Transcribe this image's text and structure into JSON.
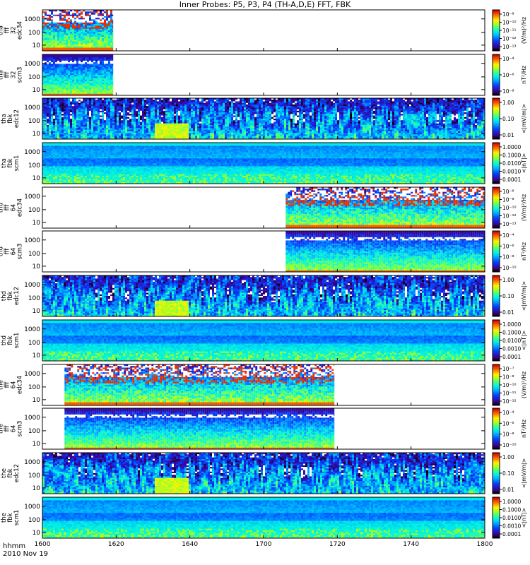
{
  "title": "Inner Probes: P5, P3, P4 (TH-A,D,E) FFT, FBK",
  "footer": {
    "line1": "hhmm",
    "line2": "2010 Nov 19"
  },
  "chart_data": {
    "type": "heatmap",
    "x_axis": {
      "ticks": [
        "1600",
        "1620",
        "1640",
        "1700",
        "1720",
        "1740",
        "1800"
      ],
      "range": [
        "16:00",
        "18:00"
      ]
    },
    "colorbar_colors": [
      "#7f00ff",
      "#1e3cff",
      "#00b4ff",
      "#00ffb4",
      "#3cff00",
      "#c8ff00",
      "#ffd200",
      "#ff6400",
      "#dc0000"
    ],
    "panels": [
      {
        "ylabel": [
          "tha",
          "fff",
          "32",
          "edc34"
        ],
        "yticks": [
          "1000",
          "100",
          "10"
        ],
        "cbar_ticks": [
          "10⁻⁸",
          "10⁻¹⁰",
          "10⁻¹¹",
          "10⁻¹²",
          "10⁻¹³"
        ],
        "cbar_label": "(V/m)²/Hz",
        "coverage": [
          [
            0.0,
            0.16
          ]
        ],
        "style": "fff"
      },
      {
        "ylabel": [
          "tha",
          "fff",
          "32",
          "scm3"
        ],
        "yticks": [
          "1000",
          "100",
          "10"
        ],
        "cbar_ticks": [
          "10⁻⁴",
          "10⁻⁶",
          "10⁻⁸"
        ],
        "cbar_label": "nT²/Hz",
        "coverage": [
          [
            0.0,
            0.16
          ]
        ],
        "style": "fffs"
      },
      {
        "ylabel": [
          "tha",
          "fbk",
          "edc12"
        ],
        "yticks": [
          "1000",
          "100",
          "10"
        ],
        "cbar_ticks": [
          "1.00",
          "0.10",
          "0.01"
        ],
        "cbar_label": "<|mV/m|>",
        "coverage": [
          [
            0.0,
            1.0
          ]
        ],
        "style": "fbkedc"
      },
      {
        "ylabel": [
          "tha",
          "fbk",
          "scm1"
        ],
        "yticks": [
          "1000",
          "100",
          "10"
        ],
        "cbar_ticks": [
          "1.0000",
          "0.1000",
          "0.0100",
          "0.0010",
          "0.0001"
        ],
        "cbar_label": "<|nT|>",
        "coverage": [
          [
            0.0,
            1.0
          ]
        ],
        "style": "fbkscm"
      },
      {
        "ylabel": [
          "thd",
          "fff",
          "64",
          "edc34"
        ],
        "yticks": [
          "1000",
          "100",
          "10"
        ],
        "cbar_ticks": [
          "10⁻⁶",
          "10⁻⁸",
          "10⁻¹⁰",
          "10⁻¹²",
          "10⁻¹³"
        ],
        "cbar_label": "(V/m)²/Hz",
        "coverage": [
          [
            0.55,
            1.0
          ]
        ],
        "style": "fff"
      },
      {
        "ylabel": [
          "thd",
          "fff",
          "64",
          "scm3"
        ],
        "yticks": [
          "1000",
          "100",
          "10"
        ],
        "cbar_ticks": [
          "10⁻⁴",
          "10⁻⁶",
          "10⁻⁸",
          "10⁻¹⁰"
        ],
        "cbar_label": "nT²/Hz",
        "coverage": [
          [
            0.55,
            1.0
          ]
        ],
        "style": "fffs"
      },
      {
        "ylabel": [
          "thd",
          "fbk",
          "edc12"
        ],
        "yticks": [
          "1000",
          "100",
          "10"
        ],
        "cbar_ticks": [
          "1.00",
          "0.10",
          "0.01"
        ],
        "cbar_label": "<|mV/m|>",
        "coverage": [
          [
            0.0,
            1.0
          ]
        ],
        "style": "fbkedc"
      },
      {
        "ylabel": [
          "thd",
          "fbk",
          "scm1"
        ],
        "yticks": [
          "1000",
          "100",
          "10"
        ],
        "cbar_ticks": [
          "1.0000",
          "0.1000",
          "0.0100",
          "0.0010",
          "0.0001"
        ],
        "cbar_label": "<|nT|>",
        "coverage": [
          [
            0.0,
            1.0
          ]
        ],
        "style": "fbkscm"
      },
      {
        "ylabel": [
          "the",
          "fff",
          "64",
          "edc34"
        ],
        "yticks": [
          "1000",
          "100",
          "10"
        ],
        "cbar_ticks": [
          "10⁻⁷",
          "10⁻⁸",
          "10⁻¹⁰",
          "10⁻¹¹",
          "10⁻¹²"
        ],
        "cbar_label": "(V/m)²/Hz",
        "coverage": [
          [
            0.05,
            0.66
          ]
        ],
        "style": "fff"
      },
      {
        "ylabel": [
          "the",
          "fff",
          "64",
          "scm3"
        ],
        "yticks": [
          "1000",
          "100",
          "10"
        ],
        "cbar_ticks": [
          "10⁻⁴",
          "10⁻⁶",
          "10⁻⁸",
          "10⁻¹⁰"
        ],
        "cbar_label": "nT²/Hz",
        "coverage": [
          [
            0.05,
            0.66
          ]
        ],
        "style": "fffs"
      },
      {
        "ylabel": [
          "the",
          "fbk",
          "edc12"
        ],
        "yticks": [
          "1000",
          "100",
          "10"
        ],
        "cbar_ticks": [
          "1.00",
          "0.10",
          "0.01"
        ],
        "cbar_label": "<|mV/m|>",
        "coverage": [
          [
            0.0,
            1.0
          ]
        ],
        "style": "fbkedc"
      },
      {
        "ylabel": [
          "the",
          "fbk",
          "scm1"
        ],
        "yticks": [
          "1000",
          "100",
          "10"
        ],
        "cbar_ticks": [
          "1.0000",
          "0.1000",
          "0.0100",
          "0.0010",
          "0.0001"
        ],
        "cbar_label": "<|nT|>",
        "coverage": [
          [
            0.0,
            1.0
          ]
        ],
        "style": "fbkscm"
      }
    ]
  }
}
